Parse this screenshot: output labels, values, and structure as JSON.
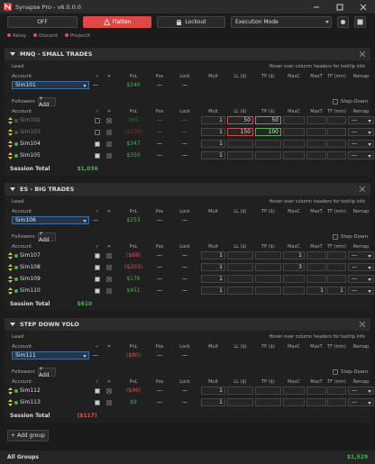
{
  "window": {
    "title": "Synapse Pro - v6.0.0.0"
  },
  "toolbar": {
    "off": "OFF",
    "flatten": "Flatten",
    "lockout": "Lockout",
    "mode": "Execution Mode"
  },
  "status": [
    "Relay",
    "Discord",
    "ProjectX"
  ],
  "labels": {
    "lead": "Lead",
    "account": "Account",
    "followers": "Followers",
    "add": "+ Add",
    "step_down": "Step-Down",
    "hint": "Hover over column headers for tooltip info",
    "session_total": "Session Total",
    "add_group": "+ Add group",
    "all_groups": "All Groups"
  },
  "columns": [
    "✓",
    "✕",
    "PnL",
    "Pos",
    "Lock",
    "Mult",
    "LL ($)",
    "TP ($)",
    "MaxC",
    "MaxT",
    "TF (min)",
    "Remap"
  ],
  "groups": [
    {
      "name": "MNQ - SMALL TRADES",
      "lead": {
        "account": "Sim101",
        "dash": "—",
        "pnl": "$340",
        "pos": "—",
        "lock": "—"
      },
      "followers": [
        {
          "account": "Sim102",
          "enabled": false,
          "pnl": "$65",
          "pos": "—",
          "lock": "—",
          "mult": 1,
          "ll": 50,
          "tp": 50,
          "maxc": null,
          "maxt": null,
          "tf": null,
          "remap": "—"
        },
        {
          "account": "Sim103",
          "enabled": false,
          "pnl": "($176)",
          "pos": "—",
          "lock": "—",
          "mult": 1,
          "ll": 150,
          "tp": 100,
          "maxc": null,
          "maxt": null,
          "tf": null,
          "remap": "—"
        },
        {
          "account": "Sim104",
          "enabled": true,
          "pnl": "$347",
          "pos": "—",
          "lock": "—",
          "mult": 1,
          "ll": null,
          "tp": null,
          "maxc": null,
          "maxt": null,
          "tf": null,
          "remap": "—"
        },
        {
          "account": "Sim105",
          "enabled": true,
          "pnl": "$350",
          "pos": "—",
          "lock": "—",
          "mult": 1,
          "ll": null,
          "tp": null,
          "maxc": null,
          "maxt": null,
          "tf": null,
          "remap": "—"
        }
      ],
      "session_total": "$1,036"
    },
    {
      "name": "ES - BIG TRADES",
      "lead": {
        "account": "Sim106",
        "dash": "—",
        "pnl": "$253",
        "pos": "—",
        "lock": "—"
      },
      "followers": [
        {
          "account": "Sim107",
          "enabled": true,
          "pnl": "($68)",
          "pos": "—",
          "lock": "—",
          "mult": 1,
          "ll": null,
          "tp": null,
          "maxc": 1,
          "maxt": null,
          "tf": null,
          "remap": "—"
        },
        {
          "account": "Sim108",
          "enabled": true,
          "pnl": "($203)",
          "pos": "—",
          "lock": "—",
          "mult": 1,
          "ll": null,
          "tp": null,
          "maxc": 3,
          "maxt": null,
          "tf": null,
          "remap": "—"
        },
        {
          "account": "Sim109",
          "enabled": true,
          "pnl": "$176",
          "pos": "—",
          "lock": "—",
          "mult": 1,
          "ll": null,
          "tp": null,
          "maxc": null,
          "maxt": null,
          "tf": null,
          "remap": "—"
        },
        {
          "account": "Sim110",
          "enabled": true,
          "pnl": "$451",
          "pos": "—",
          "lock": "—",
          "mult": 1,
          "ll": null,
          "tp": null,
          "maxc": null,
          "maxt": 1,
          "tf": 1,
          "remap": "—"
        }
      ],
      "session_total": "$610"
    },
    {
      "name": "STEP DOWN YOLO",
      "lead": {
        "account": "Sim111",
        "dash": "—",
        "pnl": "($80)",
        "pos": "—",
        "lock": "—"
      },
      "followers": [
        {
          "account": "Sim112",
          "enabled": true,
          "pnl": "($46)",
          "pos": "—",
          "lock": "—",
          "mult": 1,
          "ll": null,
          "tp": null,
          "maxc": null,
          "maxt": null,
          "tf": null,
          "remap": "—"
        },
        {
          "account": "Sim113",
          "enabled": true,
          "pnl": "$9",
          "pos": "—",
          "lock": "—",
          "mult": 1,
          "ll": null,
          "tp": null,
          "maxc": null,
          "maxt": null,
          "tf": null,
          "remap": "—"
        }
      ],
      "session_total": "($117)"
    }
  ],
  "all_groups_total": "$1,529"
}
